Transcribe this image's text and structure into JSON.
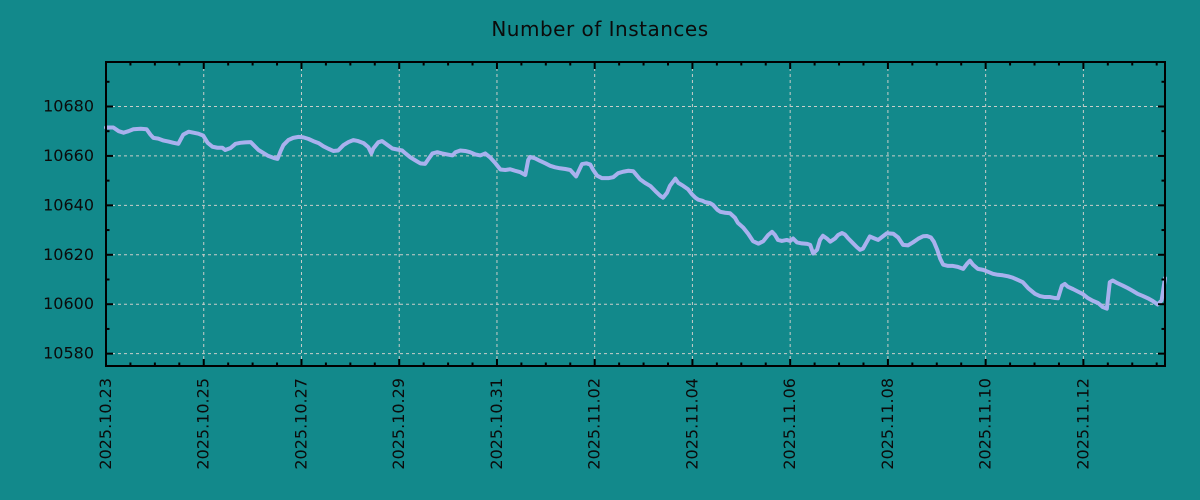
{
  "title": "Number of Instances",
  "chart_data": {
    "type": "line",
    "title": "Number of Instances",
    "background_color": "#12898b",
    "line_color": "#a9b1ee",
    "grid": true,
    "grid_color": "#c9cdc9",
    "border_color": "#000000",
    "text_color": "#0b0b0b",
    "legend_position": "none",
    "xlabel": "",
    "ylabel": "",
    "x_axis": {
      "tick_labels": [
        "2025.10.23",
        "2025.10.25",
        "2025.10.27",
        "2025.10.29",
        "2025.10.31",
        "2025.11.02",
        "2025.11.04",
        "2025.11.06",
        "2025.11.08",
        "2025.11.10",
        "2025.11.12"
      ],
      "tick_positions_days": [
        0,
        2,
        4,
        6,
        8,
        10,
        12,
        14,
        16,
        18,
        20
      ],
      "minor_tick_step_days": 0.5,
      "xlim_days": [
        0,
        21.67
      ],
      "labels_rotated_degrees": 90
    },
    "y_axis": {
      "tick_values": [
        10580,
        10600,
        10620,
        10640,
        10660,
        10680
      ],
      "minor_tick_step": 10,
      "ylim": [
        10575,
        10698
      ]
    },
    "points_day_value": [
      [
        0,
        10671.5
      ],
      [
        0.15,
        10671.5
      ],
      [
        0.26,
        10670
      ],
      [
        0.36,
        10669.4
      ],
      [
        0.46,
        10670
      ],
      [
        0.56,
        10670.8
      ],
      [
        0.71,
        10671
      ],
      [
        0.83,
        10670.8
      ],
      [
        0.91,
        10668.6
      ],
      [
        0.97,
        10667.3
      ],
      [
        1.07,
        10667
      ],
      [
        1.18,
        10666.2
      ],
      [
        1.28,
        10665.8
      ],
      [
        1.38,
        10665.3
      ],
      [
        1.48,
        10664.9
      ],
      [
        1.58,
        10668.6
      ],
      [
        1.69,
        10669.8
      ],
      [
        1.79,
        10669.4
      ],
      [
        1.89,
        10669
      ],
      [
        1.99,
        10668.2
      ],
      [
        2.08,
        10665.3
      ],
      [
        2.18,
        10663.7
      ],
      [
        2.28,
        10663.3
      ],
      [
        2.38,
        10663.3
      ],
      [
        2.44,
        10662.4
      ],
      [
        2.55,
        10663.2
      ],
      [
        2.65,
        10664.9
      ],
      [
        2.75,
        10665.3
      ],
      [
        2.85,
        10665.5
      ],
      [
        2.96,
        10665.6
      ],
      [
        3.02,
        10664.4
      ],
      [
        3.12,
        10662.4
      ],
      [
        3.22,
        10661.2
      ],
      [
        3.32,
        10660
      ],
      [
        3.43,
        10659.2
      ],
      [
        3.51,
        10658.8
      ],
      [
        3.57,
        10661.8
      ],
      [
        3.63,
        10664.4
      ],
      [
        3.73,
        10666.4
      ],
      [
        3.83,
        10667.3
      ],
      [
        3.94,
        10667.7
      ],
      [
        4.04,
        10667.5
      ],
      [
        4.14,
        10666.9
      ],
      [
        4.24,
        10666
      ],
      [
        4.35,
        10665.2
      ],
      [
        4.45,
        10663.9
      ],
      [
        4.55,
        10662.9
      ],
      [
        4.65,
        10662
      ],
      [
        4.75,
        10662.2
      ],
      [
        4.86,
        10664.4
      ],
      [
        4.96,
        10665.6
      ],
      [
        5.06,
        10666.4
      ],
      [
        5.16,
        10666
      ],
      [
        5.27,
        10665.2
      ],
      [
        5.37,
        10663.5
      ],
      [
        5.43,
        10661
      ],
      [
        5.47,
        10663
      ],
      [
        5.57,
        10665.5
      ],
      [
        5.65,
        10666
      ],
      [
        5.76,
        10664.4
      ],
      [
        5.86,
        10663
      ],
      [
        5.96,
        10662.6
      ],
      [
        6.06,
        10662.2
      ],
      [
        6.13,
        10661
      ],
      [
        6.23,
        10659.4
      ],
      [
        6.33,
        10658.2
      ],
      [
        6.43,
        10657
      ],
      [
        6.53,
        10656.8
      ],
      [
        6.6,
        10658.8
      ],
      [
        6.68,
        10661
      ],
      [
        6.78,
        10661.5
      ],
      [
        6.88,
        10661
      ],
      [
        6.98,
        10660.6
      ],
      [
        7.09,
        10660.2
      ],
      [
        7.15,
        10661.5
      ],
      [
        7.25,
        10662.2
      ],
      [
        7.35,
        10662
      ],
      [
        7.45,
        10661.5
      ],
      [
        7.56,
        10660.6
      ],
      [
        7.66,
        10660.2
      ],
      [
        7.76,
        10661
      ],
      [
        7.86,
        10659.4
      ],
      [
        7.97,
        10657
      ],
      [
        8.07,
        10654.5
      ],
      [
        8.17,
        10654.3
      ],
      [
        8.27,
        10654.6
      ],
      [
        8.37,
        10654
      ],
      [
        8.48,
        10653.4
      ],
      [
        8.58,
        10652.3
      ],
      [
        8.64,
        10658.4
      ],
      [
        8.68,
        10659.6
      ],
      [
        8.78,
        10659
      ],
      [
        8.88,
        10658
      ],
      [
        8.99,
        10657
      ],
      [
        9.09,
        10656
      ],
      [
        9.19,
        10655.4
      ],
      [
        9.29,
        10655
      ],
      [
        9.4,
        10654.7
      ],
      [
        9.5,
        10654.3
      ],
      [
        9.62,
        10651.7
      ],
      [
        9.74,
        10656.7
      ],
      [
        9.83,
        10657
      ],
      [
        9.91,
        10656.5
      ],
      [
        9.97,
        10654.3
      ],
      [
        10.05,
        10652
      ],
      [
        10.15,
        10651
      ],
      [
        10.28,
        10651
      ],
      [
        10.38,
        10651.4
      ],
      [
        10.48,
        10653
      ],
      [
        10.58,
        10653.6
      ],
      [
        10.69,
        10654
      ],
      [
        10.79,
        10653.8
      ],
      [
        10.93,
        10650.5
      ],
      [
        11.03,
        10649.1
      ],
      [
        11.14,
        10647.8
      ],
      [
        11.24,
        10645.8
      ],
      [
        11.34,
        10643.9
      ],
      [
        11.4,
        10643.1
      ],
      [
        11.48,
        10645.1
      ],
      [
        11.54,
        10647.9
      ],
      [
        11.65,
        10650.8
      ],
      [
        11.71,
        10649.1
      ],
      [
        11.81,
        10647.9
      ],
      [
        11.91,
        10646.5
      ],
      [
        11.99,
        10644.5
      ],
      [
        12.06,
        10643.1
      ],
      [
        12.12,
        10642.3
      ],
      [
        12.2,
        10641.9
      ],
      [
        12.26,
        10641.3
      ],
      [
        12.36,
        10640.9
      ],
      [
        12.42,
        10640.2
      ],
      [
        12.51,
        10638.2
      ],
      [
        12.57,
        10637.4
      ],
      [
        12.67,
        10637
      ],
      [
        12.77,
        10636.8
      ],
      [
        12.87,
        10635
      ],
      [
        12.93,
        10632.9
      ],
      [
        13.04,
        10631
      ],
      [
        13.14,
        10628.5
      ],
      [
        13.24,
        10625.5
      ],
      [
        13.35,
        10624.5
      ],
      [
        13.45,
        10625.5
      ],
      [
        13.55,
        10628
      ],
      [
        13.63,
        10629.3
      ],
      [
        13.69,
        10628
      ],
      [
        13.75,
        10626
      ],
      [
        13.83,
        10625.6
      ],
      [
        13.93,
        10626
      ],
      [
        14,
        10625.6
      ],
      [
        14.06,
        10626.6
      ],
      [
        14.14,
        10625
      ],
      [
        14.24,
        10624.6
      ],
      [
        14.35,
        10624.4
      ],
      [
        14.41,
        10624
      ],
      [
        14.47,
        10620.5
      ],
      [
        14.55,
        10622
      ],
      [
        14.61,
        10626
      ],
      [
        14.67,
        10627.7
      ],
      [
        14.75,
        10626.6
      ],
      [
        14.82,
        10625.3
      ],
      [
        14.92,
        10626.6
      ],
      [
        14.98,
        10628
      ],
      [
        15.06,
        10628.8
      ],
      [
        15.12,
        10628.2
      ],
      [
        15.18,
        10626.8
      ],
      [
        15.29,
        10624.6
      ],
      [
        15.37,
        10623
      ],
      [
        15.43,
        10622
      ],
      [
        15.49,
        10622.5
      ],
      [
        15.57,
        10625.3
      ],
      [
        15.63,
        10627.4
      ],
      [
        15.74,
        10626.5
      ],
      [
        15.8,
        10626
      ],
      [
        15.9,
        10627.5
      ],
      [
        15.98,
        10628.7
      ],
      [
        16.11,
        10628.5
      ],
      [
        16.21,
        10627
      ],
      [
        16.31,
        10624
      ],
      [
        16.41,
        10623.8
      ],
      [
        16.51,
        10625
      ],
      [
        16.62,
        10626.5
      ],
      [
        16.72,
        10627.5
      ],
      [
        16.8,
        10627.6
      ],
      [
        16.88,
        10627
      ],
      [
        16.94,
        10625.3
      ],
      [
        17.01,
        10622
      ],
      [
        17.07,
        10618.4
      ],
      [
        17.13,
        10616
      ],
      [
        17.23,
        10615.5
      ],
      [
        17.33,
        10615.5
      ],
      [
        17.43,
        10615.1
      ],
      [
        17.54,
        10614.3
      ],
      [
        17.62,
        10616.4
      ],
      [
        17.68,
        10617.6
      ],
      [
        17.74,
        10616
      ],
      [
        17.84,
        10614.3
      ],
      [
        17.95,
        10613.9
      ],
      [
        18.05,
        10613.1
      ],
      [
        18.15,
        10612.3
      ],
      [
        18.25,
        10611.9
      ],
      [
        18.35,
        10611.7
      ],
      [
        18.46,
        10611.3
      ],
      [
        18.56,
        10610.7
      ],
      [
        18.66,
        10609.8
      ],
      [
        18.76,
        10608.9
      ],
      [
        18.87,
        10606.5
      ],
      [
        19.01,
        10604.2
      ],
      [
        19.11,
        10603.3
      ],
      [
        19.21,
        10602.9
      ],
      [
        19.32,
        10602.9
      ],
      [
        19.42,
        10602.5
      ],
      [
        19.48,
        10602.4
      ],
      [
        19.56,
        10607.5
      ],
      [
        19.62,
        10608.2
      ],
      [
        19.68,
        10607.1
      ],
      [
        19.79,
        10606.1
      ],
      [
        19.89,
        10605.1
      ],
      [
        19.99,
        10604.1
      ],
      [
        20.09,
        10602.5
      ],
      [
        20.19,
        10601.4
      ],
      [
        20.3,
        10600.5
      ],
      [
        20.4,
        10598.8
      ],
      [
        20.48,
        10598.2
      ],
      [
        20.54,
        10608.9
      ],
      [
        20.6,
        10609.6
      ],
      [
        20.7,
        10608.5
      ],
      [
        20.81,
        10607.5
      ],
      [
        20.91,
        10606.5
      ],
      [
        21.01,
        10605.4
      ],
      [
        21.11,
        10604.2
      ],
      [
        21.22,
        10603.3
      ],
      [
        21.32,
        10602.4
      ],
      [
        21.42,
        10601.3
      ],
      [
        21.52,
        10599.9
      ],
      [
        21.6,
        10601.5
      ],
      [
        21.67,
        10610.5
      ]
    ]
  }
}
